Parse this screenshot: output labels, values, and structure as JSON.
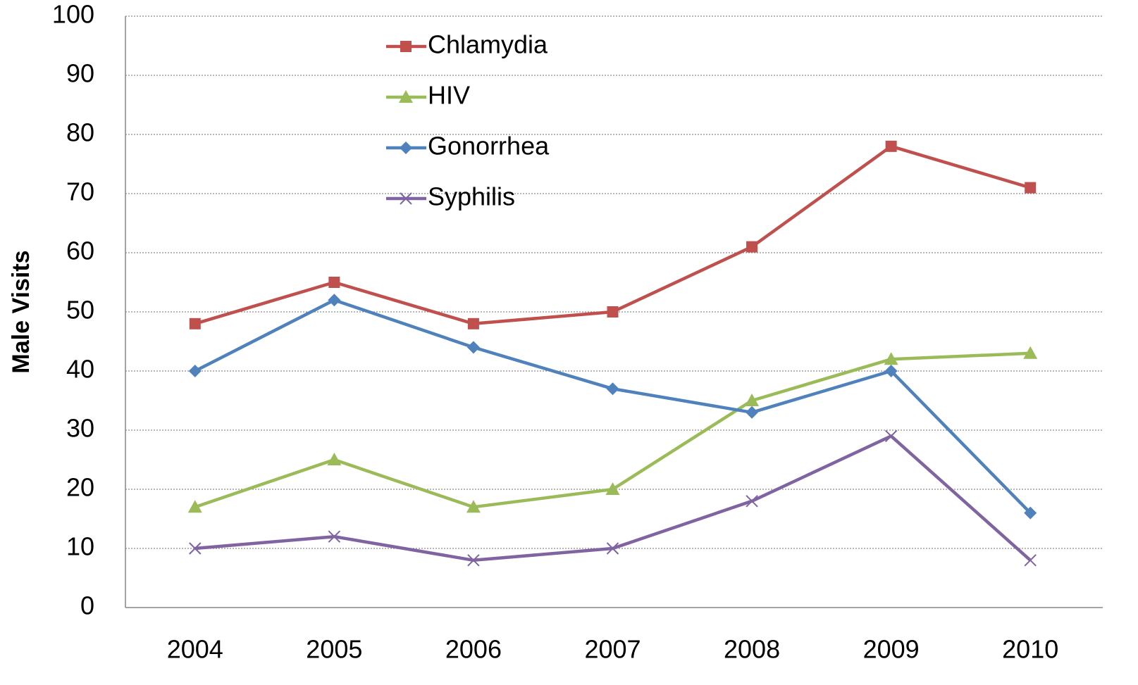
{
  "chart_data": {
    "type": "line",
    "y_label": "Male Visits",
    "categories": [
      "2004",
      "2005",
      "2006",
      "2007",
      "2008",
      "2009",
      "2010"
    ],
    "series": [
      {
        "name": "Chlamydia",
        "color": "#c0504d",
        "marker": "square",
        "values": [
          48,
          55,
          48,
          50,
          61,
          78,
          71
        ]
      },
      {
        "name": "HIV",
        "color": "#9bbb59",
        "marker": "triangle",
        "values": [
          17,
          25,
          17,
          20,
          35,
          42,
          43
        ]
      },
      {
        "name": "Gonorrhea",
        "color": "#4f81bd",
        "marker": "diamond",
        "values": [
          40,
          52,
          44,
          37,
          33,
          40,
          16
        ]
      },
      {
        "name": "Syphilis",
        "color": "#8064a2",
        "marker": "x",
        "values": [
          10,
          12,
          8,
          10,
          18,
          29,
          8
        ]
      }
    ],
    "ylim": [
      0,
      100
    ],
    "yticks": [
      0,
      10,
      20,
      30,
      40,
      50,
      60,
      70,
      80,
      90,
      100
    ],
    "grid": true,
    "legend": "top"
  }
}
